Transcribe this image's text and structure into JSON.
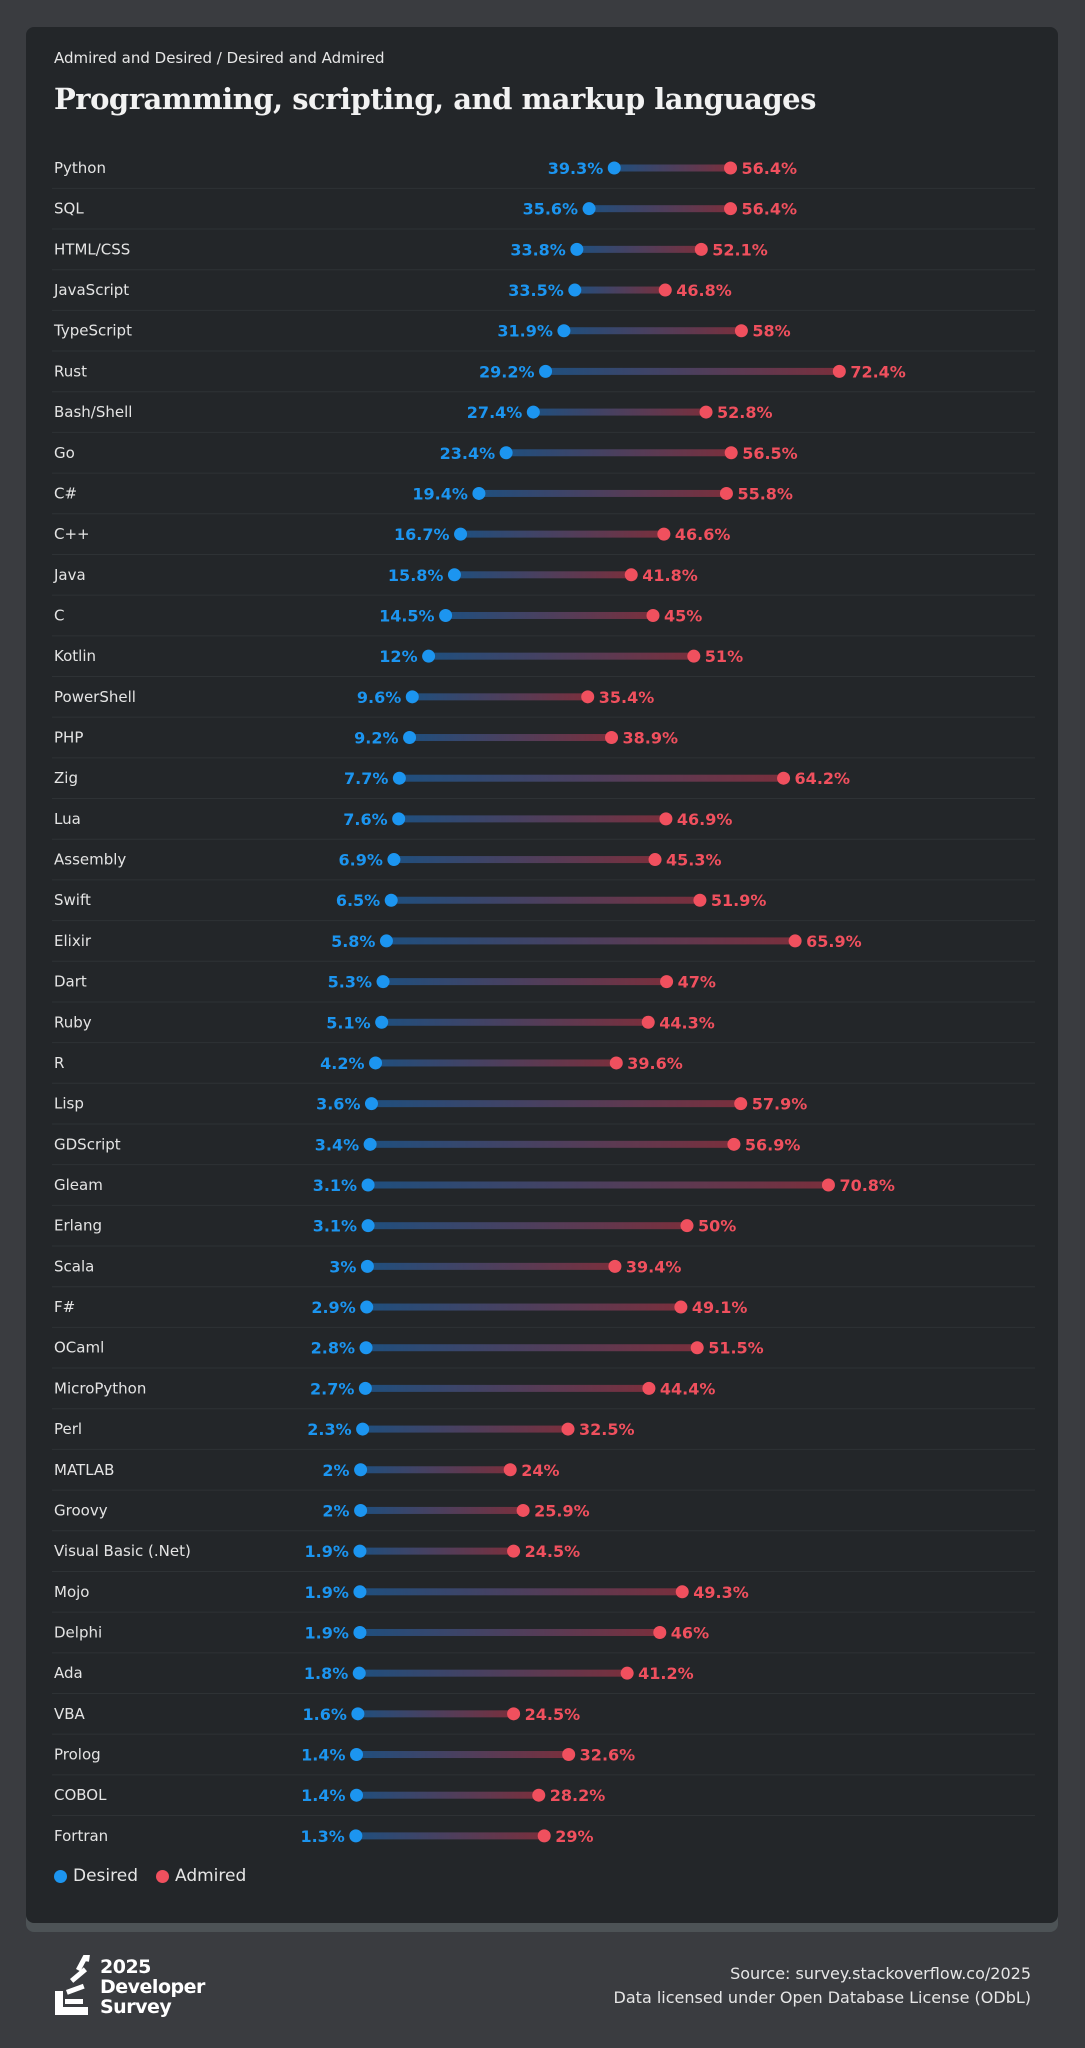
{
  "header": {
    "subtitle": "Admired and Desired / Desired and Admired",
    "title": "Programming, scripting, and markup languages"
  },
  "colors": {
    "desired": "#1c95f0",
    "admired": "#f0505e",
    "background": "#3a3c40",
    "card": "#232629"
  },
  "chart_data": {
    "type": "dumbbell",
    "series": [
      {
        "name": "Desired",
        "color": "#1c95f0"
      },
      {
        "name": "Admired",
        "color": "#f0505e"
      }
    ],
    "unit": "%",
    "legend_position": "bottom-left",
    "grid": false,
    "rows": [
      {
        "label": "Python",
        "desired": 39.3,
        "admired": 56.4
      },
      {
        "label": "SQL",
        "desired": 35.6,
        "admired": 56.4
      },
      {
        "label": "HTML/CSS",
        "desired": 33.8,
        "admired": 52.1
      },
      {
        "label": "JavaScript",
        "desired": 33.5,
        "admired": 46.8
      },
      {
        "label": "TypeScript",
        "desired": 31.9,
        "admired": 58
      },
      {
        "label": "Rust",
        "desired": 29.2,
        "admired": 72.4
      },
      {
        "label": "Bash/Shell",
        "desired": 27.4,
        "admired": 52.8
      },
      {
        "label": "Go",
        "desired": 23.4,
        "admired": 56.5
      },
      {
        "label": "C#",
        "desired": 19.4,
        "admired": 55.8
      },
      {
        "label": "C++",
        "desired": 16.7,
        "admired": 46.6
      },
      {
        "label": "Java",
        "desired": 15.8,
        "admired": 41.8
      },
      {
        "label": "C",
        "desired": 14.5,
        "admired": 45
      },
      {
        "label": "Kotlin",
        "desired": 12,
        "admired": 51
      },
      {
        "label": "PowerShell",
        "desired": 9.6,
        "admired": 35.4
      },
      {
        "label": "PHP",
        "desired": 9.2,
        "admired": 38.9
      },
      {
        "label": "Zig",
        "desired": 7.7,
        "admired": 64.2
      },
      {
        "label": "Lua",
        "desired": 7.6,
        "admired": 46.9
      },
      {
        "label": "Assembly",
        "desired": 6.9,
        "admired": 45.3
      },
      {
        "label": "Swift",
        "desired": 6.5,
        "admired": 51.9
      },
      {
        "label": "Elixir",
        "desired": 5.8,
        "admired": 65.9
      },
      {
        "label": "Dart",
        "desired": 5.3,
        "admired": 47
      },
      {
        "label": "Ruby",
        "desired": 5.1,
        "admired": 44.3
      },
      {
        "label": "R",
        "desired": 4.2,
        "admired": 39.6
      },
      {
        "label": "Lisp",
        "desired": 3.6,
        "admired": 57.9
      },
      {
        "label": "GDScript",
        "desired": 3.4,
        "admired": 56.9
      },
      {
        "label": "Gleam",
        "desired": 3.1,
        "admired": 70.8
      },
      {
        "label": "Erlang",
        "desired": 3.1,
        "admired": 50
      },
      {
        "label": "Scala",
        "desired": 3,
        "admired": 39.4
      },
      {
        "label": "F#",
        "desired": 2.9,
        "admired": 49.1
      },
      {
        "label": "OCaml",
        "desired": 2.8,
        "admired": 51.5
      },
      {
        "label": "MicroPython",
        "desired": 2.7,
        "admired": 44.4
      },
      {
        "label": "Perl",
        "desired": 2.3,
        "admired": 32.5
      },
      {
        "label": "MATLAB",
        "desired": 2,
        "admired": 24
      },
      {
        "label": "Groovy",
        "desired": 2,
        "admired": 25.9
      },
      {
        "label": "Visual Basic (.Net)",
        "desired": 1.9,
        "admired": 24.5
      },
      {
        "label": "Mojo",
        "desired": 1.9,
        "admired": 49.3
      },
      {
        "label": "Delphi",
        "desired": 1.9,
        "admired": 46
      },
      {
        "label": "Ada",
        "desired": 1.8,
        "admired": 41.2
      },
      {
        "label": "VBA",
        "desired": 1.6,
        "admired": 24.5
      },
      {
        "label": "Prolog",
        "desired": 1.4,
        "admired": 32.6
      },
      {
        "label": "COBOL",
        "desired": 1.4,
        "admired": 28.2
      },
      {
        "label": "Fortran",
        "desired": 1.3,
        "admired": 29
      }
    ]
  },
  "legend": {
    "desired": "Desired",
    "admired": "Admired"
  },
  "footer": {
    "logo_year": "2025",
    "logo_line1": "Developer",
    "logo_line2": "Survey",
    "source": "Source: survey.stackoverflow.co/2025",
    "license": "Data licensed under Open Database License (ODbL)"
  }
}
